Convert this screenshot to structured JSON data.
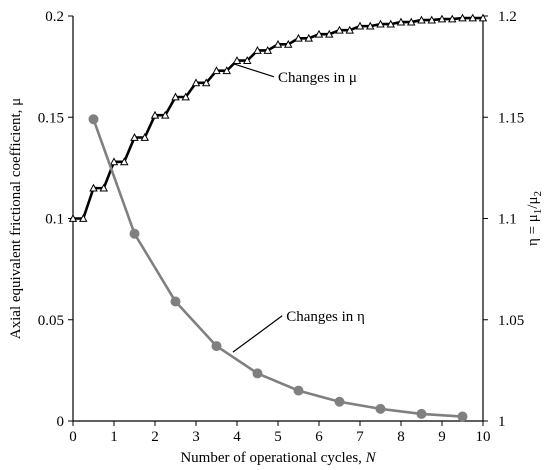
{
  "chart_data": {
    "type": "line",
    "x_axis": {
      "label_main": "Number of operational cycles, ",
      "label_var": "N",
      "range": [
        0,
        10
      ],
      "ticks": [
        "0",
        "1",
        "2",
        "3",
        "4",
        "5",
        "6",
        "7",
        "8",
        "9",
        "10"
      ]
    },
    "y_left": {
      "label": "Axial equivalent frictional coefficient, μ",
      "range": [
        0,
        0.2
      ],
      "ticks": [
        {
          "value": 0,
          "label": "0"
        },
        {
          "value": 0.05,
          "label": "0.05"
        },
        {
          "value": 0.1,
          "label": "0.1"
        },
        {
          "value": 0.15,
          "label": "0.15"
        },
        {
          "value": 0.2,
          "label": "0.2"
        }
      ]
    },
    "y_right": {
      "label_prefix": "η = μ",
      "label_sub1": "1",
      "label_mid": "/μ",
      "label_sub2": "2",
      "range": [
        1,
        1.2
      ],
      "ticks": [
        {
          "value": 1,
          "label": "1"
        },
        {
          "value": 1.05,
          "label": "1.05"
        },
        {
          "value": 1.1,
          "label": "1.1"
        },
        {
          "value": 1.15,
          "label": "1.15"
        },
        {
          "value": 1.2,
          "label": "1.2"
        }
      ]
    },
    "grid": false,
    "series": [
      {
        "axis": "left",
        "style": "step",
        "color": "#000000",
        "marker": "triangle-open",
        "x": [
          0,
          0.25,
          0.5,
          0.75,
          1,
          1.25,
          1.5,
          1.75,
          2,
          2.25,
          2.5,
          2.75,
          3,
          3.25,
          3.5,
          3.75,
          4,
          4.25,
          4.5,
          4.75,
          5,
          5.25,
          5.5,
          5.75,
          6,
          6.25,
          6.5,
          6.75,
          7,
          7.25,
          7.5,
          7.75,
          8,
          8.25,
          8.5,
          8.75,
          9,
          9.25,
          9.5,
          9.75,
          10
        ],
        "y": [
          0.1,
          0.1,
          0.115,
          0.115,
          0.128,
          0.128,
          0.14,
          0.14,
          0.151,
          0.151,
          0.16,
          0.16,
          0.167,
          0.167,
          0.173,
          0.173,
          0.178,
          0.178,
          0.183,
          0.183,
          0.186,
          0.186,
          0.189,
          0.189,
          0.191,
          0.191,
          0.193,
          0.193,
          0.195,
          0.195,
          0.196,
          0.196,
          0.197,
          0.197,
          0.198,
          0.198,
          0.1985,
          0.1985,
          0.199,
          0.199,
          0.199
        ]
      },
      {
        "axis": "right",
        "style": "line",
        "color": "#808080",
        "marker": "circle-filled",
        "x": [
          0.5,
          1.5,
          2.5,
          3.5,
          4.5,
          5.5,
          6.5,
          7.5,
          8.5,
          9.5
        ],
        "y": [
          1.149,
          1.0925,
          1.059,
          1.037,
          1.0235,
          1.015,
          1.0095,
          1.006,
          1.0035,
          1.0022
        ]
      }
    ],
    "annotations": [
      {
        "text": "Changes in μ",
        "x": 5.0,
        "y": 0.1675,
        "pointer_x": 3.9,
        "pointer_y": 0.1765,
        "anchor": "start"
      },
      {
        "text": "Changes in η",
        "x": 5.2,
        "y": 0.0495,
        "pointer_x": 3.9,
        "pointer_y": 0.034,
        "anchor": "start"
      }
    ]
  }
}
